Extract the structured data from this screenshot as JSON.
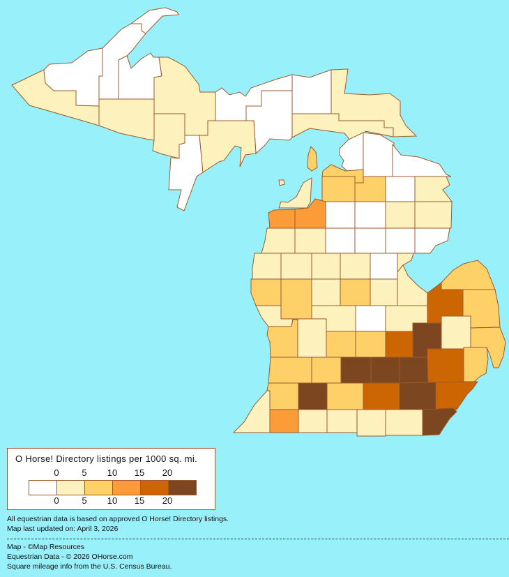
{
  "colors": {
    "background": "#98f0fb",
    "border": "#9c5a2c",
    "bins": [
      "#ffffff",
      "#fdf2be",
      "#fdd068",
      "#fc9c38",
      "#cc6602",
      "#7c4620"
    ]
  },
  "legend": {
    "title": "O Horse! Directory listings per 1000 sq. mi.",
    "top_ticks": [
      "0",
      "5",
      "10",
      "15",
      "20"
    ],
    "bottom_ticks": [
      "0",
      "5",
      "10",
      "15",
      "20"
    ]
  },
  "county_level_bins": [
    1,
    0,
    0,
    0,
    0,
    0,
    0,
    0,
    1,
    1,
    1,
    1,
    1,
    1,
    0,
    2,
    1,
    1,
    0,
    0,
    0,
    2,
    2,
    2,
    0,
    1,
    1,
    3,
    3,
    0,
    0,
    1,
    1,
    1,
    1,
    0,
    0,
    0,
    0,
    1,
    1,
    1,
    1,
    1,
    0,
    2,
    2,
    1,
    2,
    1,
    1,
    2,
    1,
    1,
    0,
    1,
    4,
    2,
    2,
    1,
    2,
    2,
    4,
    5,
    1,
    2,
    2,
    2,
    5,
    5,
    5,
    4,
    2,
    2,
    5,
    2,
    4,
    5,
    4,
    3,
    1,
    1,
    1,
    1,
    5,
    1,
    1
  ],
  "notes": {
    "line1": "All equestrian data is based on approved O Horse! Directory listings.",
    "line2": "Map last updated on: April 3, 2026",
    "credit1": "Map - ©Map Resources",
    "credit2": "Equestrian Data - © 2026 OHorse.com",
    "credit3": "Square mileage info from the U.S. Census Bureau."
  }
}
